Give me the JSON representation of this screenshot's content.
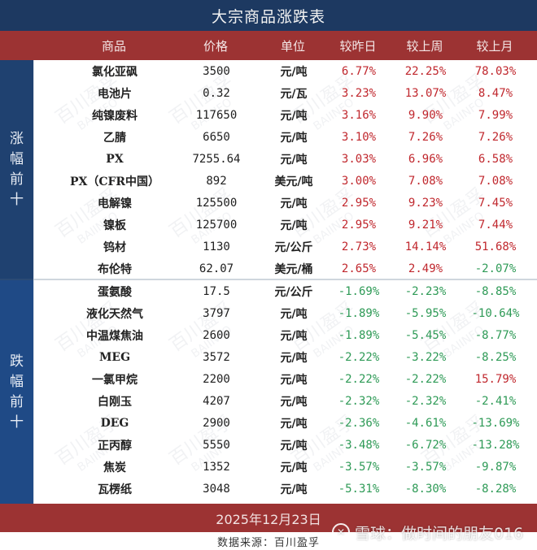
{
  "title": "大宗商品涨跌表",
  "header": {
    "name": "商品",
    "price": "价格",
    "unit": "单位",
    "day": "较昨日",
    "week": "较上周",
    "month": "较上月"
  },
  "groups": [
    {
      "label": "涨幅前十",
      "label_chars": [
        "涨",
        "幅",
        "前",
        "十"
      ],
      "rows": [
        {
          "name": "氯化亚砜",
          "price": "3500",
          "unit": "元/吨",
          "day": "6.77%",
          "week": "22.25%",
          "month": "78.03%"
        },
        {
          "name": "电池片",
          "price": "0.32",
          "unit": "元/瓦",
          "day": "3.23%",
          "week": "13.07%",
          "month": "8.47%"
        },
        {
          "name": "纯镍废料",
          "price": "117650",
          "unit": "元/吨",
          "day": "3.16%",
          "week": "9.90%",
          "month": "7.99%"
        },
        {
          "name": "乙腈",
          "price": "6650",
          "unit": "元/吨",
          "day": "3.10%",
          "week": "7.26%",
          "month": "7.26%"
        },
        {
          "name": "PX",
          "price": "7255.64",
          "unit": "元/吨",
          "day": "3.03%",
          "week": "6.96%",
          "month": "6.58%"
        },
        {
          "name": "PX（CFR中国）",
          "price": "892",
          "unit": "美元/吨",
          "day": "3.00%",
          "week": "7.08%",
          "month": "7.08%"
        },
        {
          "name": "电解镍",
          "price": "125500",
          "unit": "元/吨",
          "day": "2.95%",
          "week": "9.23%",
          "month": "7.45%"
        },
        {
          "name": "镍板",
          "price": "125700",
          "unit": "元/吨",
          "day": "2.95%",
          "week": "9.21%",
          "month": "7.44%"
        },
        {
          "name": "钨材",
          "price": "1130",
          "unit": "元/公斤",
          "day": "2.73%",
          "week": "14.14%",
          "month": "51.68%"
        },
        {
          "name": "布伦特",
          "price": "62.07",
          "unit": "美元/桶",
          "day": "2.65%",
          "week": "2.49%",
          "month": "-2.07%"
        }
      ]
    },
    {
      "label": "跌幅前十",
      "label_chars": [
        "跌",
        "幅",
        "前",
        "十"
      ],
      "rows": [
        {
          "name": "蛋氨酸",
          "price": "17.5",
          "unit": "元/公斤",
          "day": "-1.69%",
          "week": "-2.23%",
          "month": "-8.85%"
        },
        {
          "name": "液化天然气",
          "price": "3797",
          "unit": "元/吨",
          "day": "-1.89%",
          "week": "-5.95%",
          "month": "-10.64%"
        },
        {
          "name": "中温煤焦油",
          "price": "2600",
          "unit": "元/吨",
          "day": "-1.89%",
          "week": "-5.45%",
          "month": "-8.77%"
        },
        {
          "name": "MEG",
          "price": "3572",
          "unit": "元/吨",
          "day": "-2.22%",
          "week": "-3.22%",
          "month": "-8.25%"
        },
        {
          "name": "一氯甲烷",
          "price": "2200",
          "unit": "元/吨",
          "day": "-2.22%",
          "week": "-2.22%",
          "month": "15.79%"
        },
        {
          "name": "白刚玉",
          "price": "4207",
          "unit": "元/吨",
          "day": "-2.32%",
          "week": "-2.32%",
          "month": "-2.41%"
        },
        {
          "name": "DEG",
          "price": "2900",
          "unit": "元/吨",
          "day": "-2.36%",
          "week": "-4.61%",
          "month": "-13.69%"
        },
        {
          "name": "正丙醇",
          "price": "5550",
          "unit": "元/吨",
          "day": "-3.48%",
          "week": "-6.72%",
          "month": "-13.28%"
        },
        {
          "name": "焦炭",
          "price": "1352",
          "unit": "元/吨",
          "day": "-3.57%",
          "week": "-3.57%",
          "month": "-9.87%"
        },
        {
          "name": "瓦楞纸",
          "price": "3048",
          "unit": "元/吨",
          "day": "-5.31%",
          "week": "-8.30%",
          "month": "-8.28%"
        }
      ]
    }
  ],
  "footer": {
    "date": "2025年12月23日",
    "source": "数据来源：百川盈孚"
  },
  "watermarks": {
    "background_cn": "百川盈孚",
    "background_en": "BAIINFO",
    "xueqiu": "雪球：做时间的朋友016",
    "xueqiu_icon": "snowball-logo-icon"
  },
  "colors": {
    "title_bg": "#1d3961",
    "header_bg": "#9c3333",
    "side_label_bg": "#1f4170",
    "up": "#c0272d",
    "down": "#2e9a56"
  }
}
